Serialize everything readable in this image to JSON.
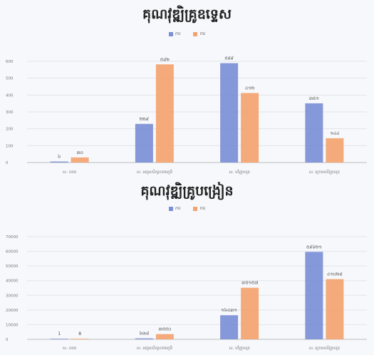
{
  "colors": {
    "series1": "#7b8fd6",
    "series2": "#f3a36f",
    "grid": "#e2e4ea",
    "axis": "#bbbbbb"
  },
  "chart_data": [
    {
      "type": "bar",
      "title": "គុណវុឌ្ឍិគ្រូឧទ្ទេស",
      "categories": [
        "ស. បឋម",
        "ស. មធ្យមសិក្សាបឋមភូមិ",
        "ស. បរិញ្ញាបត្រ",
        "ស. ក្រោយបរិញ្ញាបត្រ"
      ],
      "series": [
        {
          "name": "ការ",
          "values": [
            6,
            229,
            589,
            351
          ]
        },
        {
          "name": "ការ",
          "values": [
            30,
            582,
            412,
            144
          ]
        }
      ],
      "data_labels": [
        [
          "៦",
          "៣០"
        ],
        [
          "២២៩",
          "៥៨២"
        ],
        [
          "៥៨៩",
          "៤១២"
        ],
        [
          "៣៥១",
          "១៤៤"
        ]
      ],
      "yticks": [
        "0",
        "100",
        "200",
        "300",
        "400",
        "500",
        "600"
      ],
      "ylim": [
        0,
        600
      ],
      "xlabel": "",
      "ylabel": "",
      "legend_position": "top-center",
      "grid": true
    },
    {
      "type": "bar",
      "title": "គុណវុឌ្ឍិគ្រូបង្រៀន",
      "categories": [
        "ស. បឋម",
        "ស. មធ្យមសិក្សាបឋមភូមិ",
        "ស. បរិញ្ញាបត្រ",
        "ស. ក្រោយបរិញ្ញាបត្រ"
      ],
      "series": [
        {
          "name": "ការ",
          "values": [
            1,
            638,
            16431,
            59621
          ]
        },
        {
          "name": "ការ",
          "values": [
            8,
            3550,
            35157,
            41028
          ]
        }
      ],
      "data_labels": [
        [
          "1",
          "8"
        ],
        [
          "៦៣៨",
          "៣៥៥០"
        ],
        [
          "១៦៤៣១",
          "៣៥១៥៧"
        ],
        [
          "៥៩៦២១",
          "៤១០២៨"
        ]
      ],
      "yticks": [
        "0",
        "10000",
        "20000",
        "30000",
        "40000",
        "50000",
        "60000",
        "70000"
      ],
      "ylim": [
        0,
        70000
      ],
      "xlabel": "",
      "ylabel": "",
      "legend_position": "top-center",
      "grid": true
    }
  ]
}
